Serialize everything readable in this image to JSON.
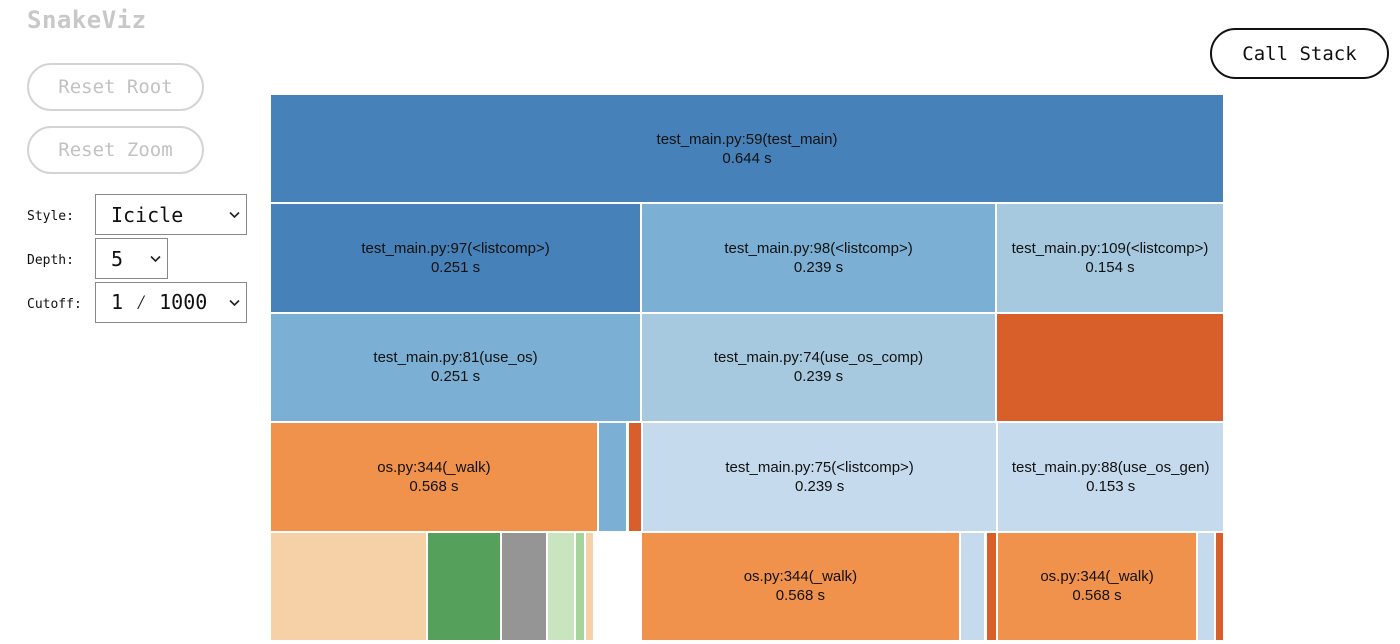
{
  "app": {
    "title": "SnakeViz"
  },
  "controls": {
    "reset_root_label": "Reset Root",
    "reset_zoom_label": "Reset Zoom",
    "call_stack_label": "Call Stack",
    "style_label": "Style:",
    "style_value": "Icicle",
    "depth_label": "Depth:",
    "depth_value": "5",
    "cutoff_label": "Cutoff:",
    "cutoff_value": "1 ⁄ 1000"
  },
  "colors": {
    "dark_blue": "#4682b9",
    "mid_blue": "#7bafd4",
    "light_blue": "#a6c9df",
    "pale_blue": "#c6daed",
    "dark_orange": "#d85f29",
    "orange": "#f0924c",
    "peach": "#f6d0a6",
    "green": "#55a05a",
    "light_green": "#c9e5c0",
    "mid_green": "#a5d59c",
    "gray": "#959595"
  },
  "icicle": {
    "rows": [
      [
        {
          "label": "test_main.py:59(test_main)",
          "time": "0.644 s",
          "color": "dark_blue",
          "share": 1.0
        }
      ],
      [
        {
          "label": "test_main.py:97(<listcomp>)",
          "time": "0.251 s",
          "color": "dark_blue",
          "share": 0.389
        },
        {
          "label": "test_main.py:98(<listcomp>)",
          "time": "0.239 s",
          "color": "mid_blue",
          "share": 0.372
        },
        {
          "label": "test_main.py:109(<listcomp>)",
          "time": "0.154 s",
          "color": "light_blue",
          "share": 0.239
        }
      ],
      [
        {
          "label": "test_main.py:81(use_os)",
          "time": "0.251 s",
          "color": "mid_blue",
          "share": 0.389
        },
        {
          "label": "test_main.py:74(use_os_comp)",
          "time": "0.239 s",
          "color": "light_blue",
          "share": 0.372
        },
        {
          "label": "",
          "time": "",
          "color": "dark_orange",
          "share": 0.239
        }
      ],
      [
        {
          "label": "os.py:344(_walk)",
          "time": "0.568 s",
          "color": "orange",
          "share": 0.343
        },
        {
          "label": "",
          "time": "",
          "color": "mid_blue",
          "share": 0.031
        },
        {
          "label": "",
          "time": "",
          "color": "dark_orange",
          "share": 0.015
        },
        {
          "label": "test_main.py:75(<listcomp>)",
          "time": "0.239 s",
          "color": "pale_blue",
          "share": 0.372
        },
        {
          "label": "test_main.py:88(use_os_gen)",
          "time": "0.153 s",
          "color": "pale_blue",
          "share": 0.237
        }
      ],
      [
        {
          "label": "",
          "time": "",
          "color": "peach",
          "share": 0.165
        },
        {
          "label": "",
          "time": "",
          "color": "green",
          "share": 0.077
        },
        {
          "label": "",
          "time": "",
          "color": "gray",
          "share": 0.048
        },
        {
          "label": "",
          "time": "",
          "color": "light_green",
          "share": 0.03
        },
        {
          "label": "",
          "time": "",
          "color": "mid_green",
          "share": 0.01
        },
        {
          "label": "",
          "time": "",
          "color": "peach",
          "share": 0.01
        },
        {
          "label": "",
          "time": "",
          "color": "none",
          "share": 0.049
        },
        {
          "label": "os.py:344(_walk)",
          "time": "0.568 s",
          "color": "orange",
          "share": 0.334
        },
        {
          "label": "",
          "time": "",
          "color": "pale_blue",
          "share": 0.027
        },
        {
          "label": "",
          "time": "",
          "color": "dark_orange",
          "share": 0.012
        },
        {
          "label": "os.py:344(_walk)",
          "time": "0.568 s",
          "color": "orange",
          "share": 0.21
        },
        {
          "label": "",
          "time": "",
          "color": "pale_blue",
          "share": 0.019
        },
        {
          "label": "",
          "time": "",
          "color": "dark_orange",
          "share": 0.009
        }
      ]
    ]
  }
}
